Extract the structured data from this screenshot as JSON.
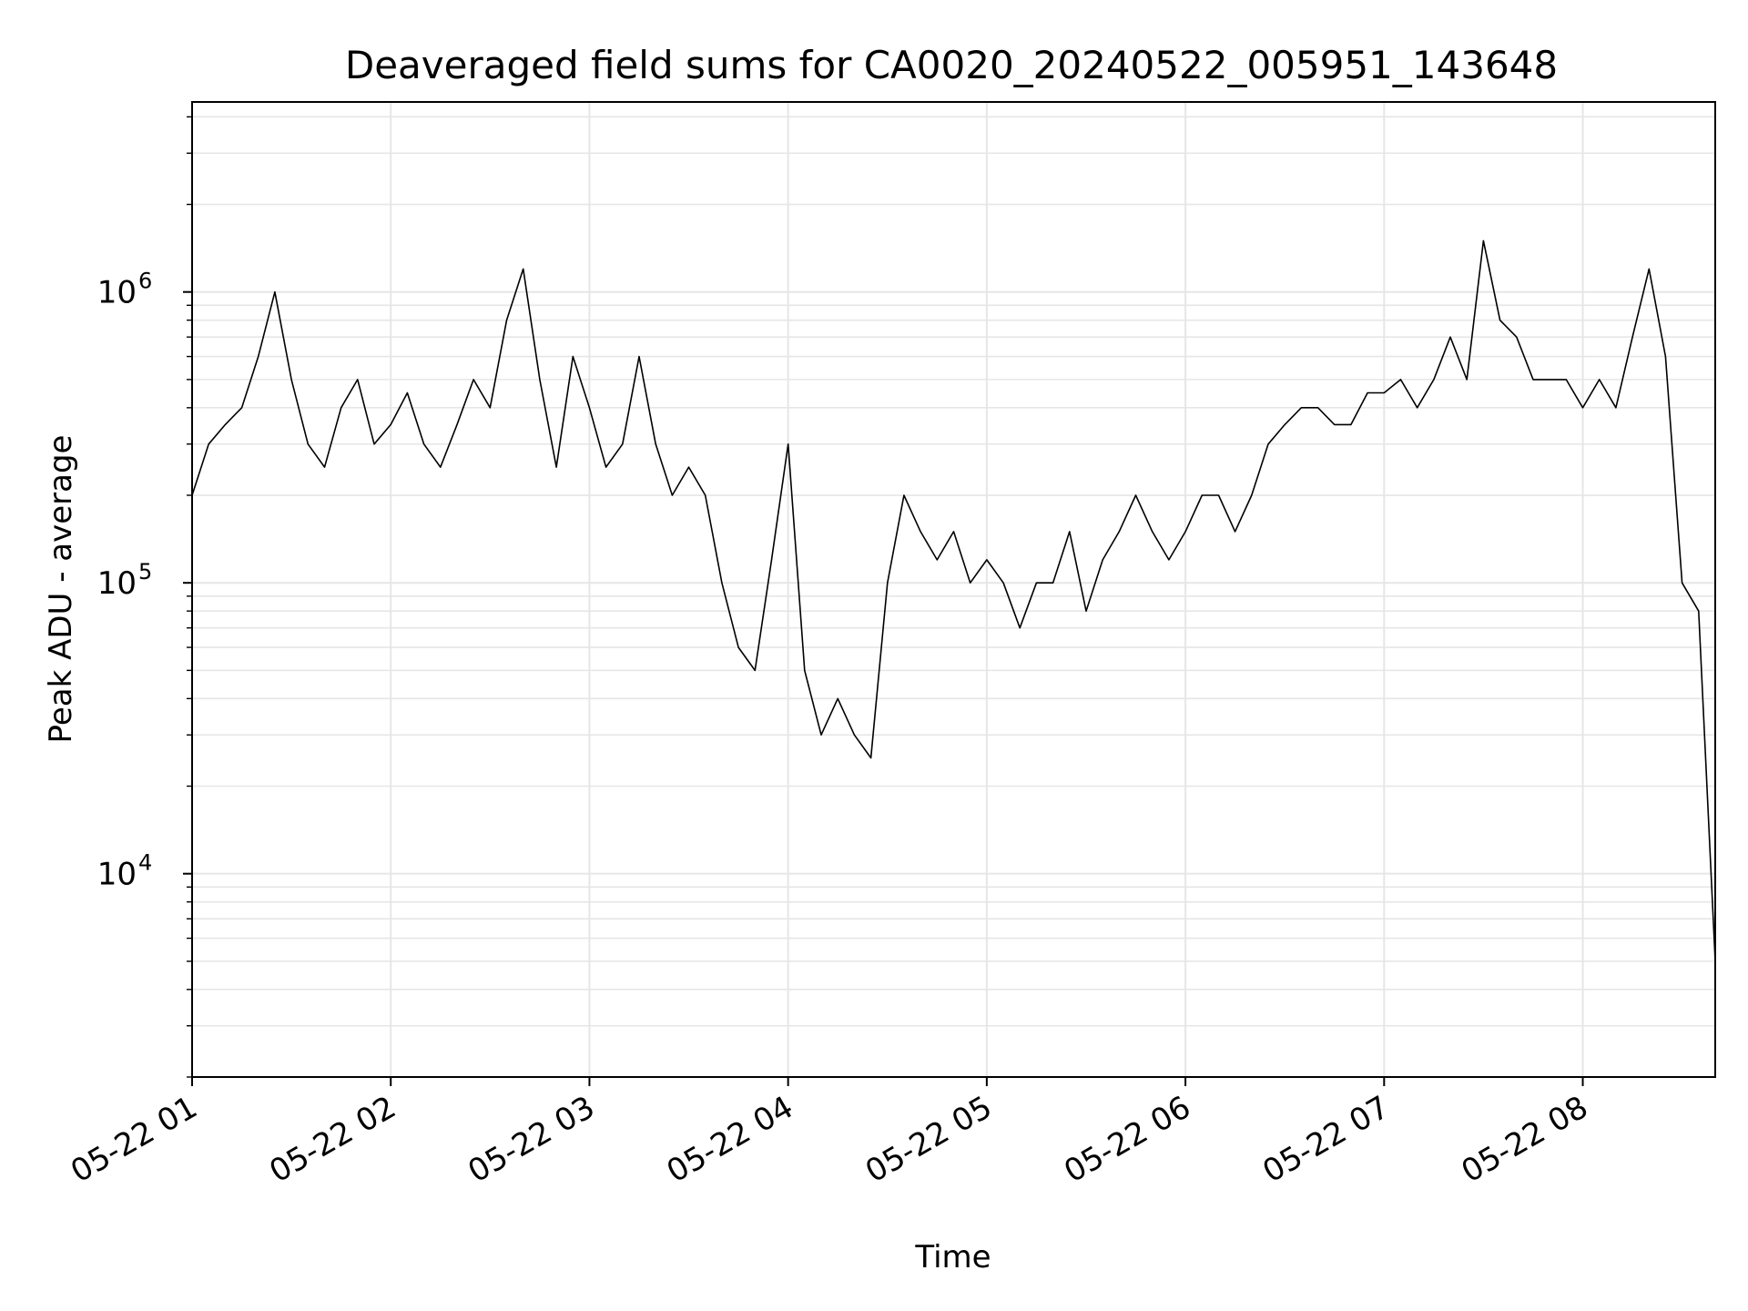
{
  "chart_data": {
    "type": "line",
    "title": "Deaveraged field sums for CA0020_20240522_005951_143648",
    "xlabel": "Time",
    "ylabel": "Peak ADU - average",
    "x_scale": "time",
    "y_scale": "log",
    "xlim": [
      "2024-05-22T01:00",
      "2024-05-22T08:40"
    ],
    "ylim": [
      2000,
      4500000
    ],
    "grid": true,
    "line_color": "#000000",
    "x_ticks": [
      {
        "value": "2024-05-22T01:00",
        "label": "05-22 01"
      },
      {
        "value": "2024-05-22T02:00",
        "label": "05-22 02"
      },
      {
        "value": "2024-05-22T03:00",
        "label": "05-22 03"
      },
      {
        "value": "2024-05-22T04:00",
        "label": "05-22 04"
      },
      {
        "value": "2024-05-22T05:00",
        "label": "05-22 05"
      },
      {
        "value": "2024-05-22T06:00",
        "label": "05-22 06"
      },
      {
        "value": "2024-05-22T07:00",
        "label": "05-22 07"
      },
      {
        "value": "2024-05-22T08:00",
        "label": "05-22 08"
      }
    ],
    "y_ticks": [
      {
        "value": 10000,
        "base": "10",
        "exp": "4"
      },
      {
        "value": 100000,
        "base": "10",
        "exp": "5"
      },
      {
        "value": 1000000,
        "base": "10",
        "exp": "6"
      }
    ],
    "series": [
      {
        "x": [
          "2024-05-22T01:00",
          "2024-05-22T01:05",
          "2024-05-22T01:10",
          "2024-05-22T01:15",
          "2024-05-22T01:20",
          "2024-05-22T01:25",
          "2024-05-22T01:30",
          "2024-05-22T01:35",
          "2024-05-22T01:40",
          "2024-05-22T01:45",
          "2024-05-22T01:50",
          "2024-05-22T01:55",
          "2024-05-22T02:00",
          "2024-05-22T02:05",
          "2024-05-22T02:10",
          "2024-05-22T02:15",
          "2024-05-22T02:20",
          "2024-05-22T02:25",
          "2024-05-22T02:30",
          "2024-05-22T02:35",
          "2024-05-22T02:40",
          "2024-05-22T02:45",
          "2024-05-22T02:50",
          "2024-05-22T02:55",
          "2024-05-22T03:00",
          "2024-05-22T03:05",
          "2024-05-22T03:10",
          "2024-05-22T03:15",
          "2024-05-22T03:20",
          "2024-05-22T03:25",
          "2024-05-22T03:30",
          "2024-05-22T03:35",
          "2024-05-22T03:40",
          "2024-05-22T03:45",
          "2024-05-22T03:50",
          "2024-05-22T03:55",
          "2024-05-22T04:00",
          "2024-05-22T04:05",
          "2024-05-22T04:10",
          "2024-05-22T04:15",
          "2024-05-22T04:20",
          "2024-05-22T04:25",
          "2024-05-22T04:30",
          "2024-05-22T04:35",
          "2024-05-22T04:40",
          "2024-05-22T04:45",
          "2024-05-22T04:50",
          "2024-05-22T04:55",
          "2024-05-22T05:00",
          "2024-05-22T05:05",
          "2024-05-22T05:10",
          "2024-05-22T05:15",
          "2024-05-22T05:20",
          "2024-05-22T05:25",
          "2024-05-22T05:30",
          "2024-05-22T05:35",
          "2024-05-22T05:40",
          "2024-05-22T05:45",
          "2024-05-22T05:50",
          "2024-05-22T05:55",
          "2024-05-22T06:00",
          "2024-05-22T06:05",
          "2024-05-22T06:10",
          "2024-05-22T06:15",
          "2024-05-22T06:20",
          "2024-05-22T06:25",
          "2024-05-22T06:30",
          "2024-05-22T06:35",
          "2024-05-22T06:40",
          "2024-05-22T06:45",
          "2024-05-22T06:50",
          "2024-05-22T06:55",
          "2024-05-22T07:00",
          "2024-05-22T07:05",
          "2024-05-22T07:10",
          "2024-05-22T07:15",
          "2024-05-22T07:20",
          "2024-05-22T07:25",
          "2024-05-22T07:30",
          "2024-05-22T07:35",
          "2024-05-22T07:40",
          "2024-05-22T07:45",
          "2024-05-22T07:50",
          "2024-05-22T07:55",
          "2024-05-22T08:00",
          "2024-05-22T08:05",
          "2024-05-22T08:10",
          "2024-05-22T08:15",
          "2024-05-22T08:20",
          "2024-05-22T08:25",
          "2024-05-22T08:30",
          "2024-05-22T08:35",
          "2024-05-22T08:40"
        ],
        "y": [
          200000,
          300000,
          350000,
          400000,
          600000,
          1000000,
          500000,
          300000,
          250000,
          400000,
          500000,
          300000,
          350000,
          450000,
          300000,
          250000,
          350000,
          500000,
          400000,
          800000,
          1200000,
          500000,
          250000,
          600000,
          400000,
          250000,
          300000,
          600000,
          300000,
          200000,
          250000,
          200000,
          100000,
          60000,
          50000,
          120000,
          300000,
          50000,
          30000,
          40000,
          30000,
          25000,
          100000,
          200000,
          150000,
          120000,
          150000,
          100000,
          120000,
          100000,
          70000,
          100000,
          100000,
          150000,
          80000,
          120000,
          150000,
          200000,
          150000,
          120000,
          150000,
          200000,
          200000,
          150000,
          200000,
          300000,
          350000,
          400000,
          400000,
          350000,
          350000,
          450000,
          450000,
          500000,
          400000,
          500000,
          700000,
          500000,
          1500000,
          800000,
          700000,
          500000,
          500000,
          500000,
          400000,
          500000,
          400000,
          700000,
          1200000,
          600000,
          100000,
          80000,
          5000
        ]
      }
    ]
  }
}
